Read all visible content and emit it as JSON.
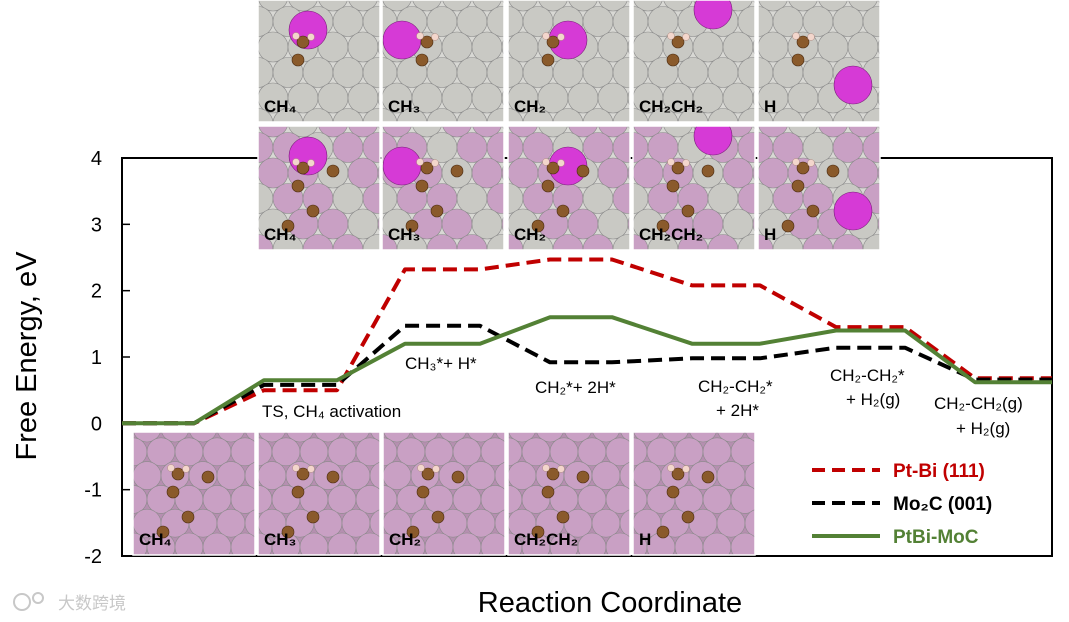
{
  "chart_data": {
    "type": "line",
    "xlabel": "Reaction Coordinate",
    "ylabel": "Free Energy, eV",
    "ylim": [
      -2,
      4
    ],
    "yticks": [
      "4",
      "3",
      "2",
      "1",
      "0",
      "-1",
      "-2"
    ],
    "grid": false,
    "legend_position": "bottom-right",
    "series": [
      {
        "name": "Pt-Bi (111)",
        "color": "#c00000",
        "style": "dashed",
        "values": [
          0,
          0,
          0.5,
          0.5,
          2.32,
          2.32,
          2.47,
          2.47,
          2.08,
          2.08,
          1.45,
          1.45,
          0.68,
          0.68
        ]
      },
      {
        "name": "Mo2C (001)",
        "color": "#000000",
        "style": "dashed",
        "values": [
          0,
          0,
          0.58,
          0.58,
          1.47,
          1.47,
          0.92,
          0.92,
          0.98,
          0.98,
          1.14,
          1.14,
          0.66,
          0.66
        ]
      },
      {
        "name": "PtBi-MoC",
        "color": "#538135",
        "style": "solid",
        "values": [
          0,
          0,
          0.65,
          0.65,
          1.2,
          1.2,
          1.6,
          1.6,
          1.2,
          1.2,
          1.4,
          1.4,
          0.62,
          0.62
        ]
      }
    ],
    "annotations": [
      {
        "id": "ts",
        "text": "TS, CH₄ activation"
      },
      {
        "id": "ch3",
        "text": "CH₃*+ H*"
      },
      {
        "id": "ch2",
        "text": "CH₂*+ 2H*"
      },
      {
        "id": "ch2ch2a1",
        "text": "CH₂-CH₂*"
      },
      {
        "id": "ch2ch2a2",
        "text": "+ 2H*"
      },
      {
        "id": "ch2ch2b1",
        "text": "CH₂-CH₂*"
      },
      {
        "id": "ch2ch2b2",
        "text": "+ H₂(g)"
      },
      {
        "id": "final1",
        "text": "CH₂-CH₂(g)"
      },
      {
        "id": "final2",
        "text": "+ H₂(g)"
      }
    ],
    "legend": [
      "Pt-Bi (111)",
      "Mo₂C (001)",
      "PtBi-MoC"
    ],
    "structure_panels": {
      "top_row": [
        "CH₄",
        "CH₃",
        "CH₂",
        "CH₂CH₂",
        "H"
      ],
      "middle_row": [
        "CH₄",
        "CH₃",
        "CH₂",
        "CH₂CH₂",
        "H"
      ],
      "bottom_row": [
        "CH₄",
        "CH₃",
        "CH₂",
        "CH₂CH₂",
        "H"
      ]
    }
  },
  "watermark": "大数跨境",
  "colors": {
    "pt_bi": "#c00000",
    "mo2c": "#000000",
    "ptbi_moc": "#538135",
    "atom_pt": "#c9c9c4",
    "atom_bi": "#d63ad6",
    "atom_mo": "#c9a0c4",
    "atom_c": "#8a5a2b",
    "atom_h": "#f3d6cc"
  }
}
